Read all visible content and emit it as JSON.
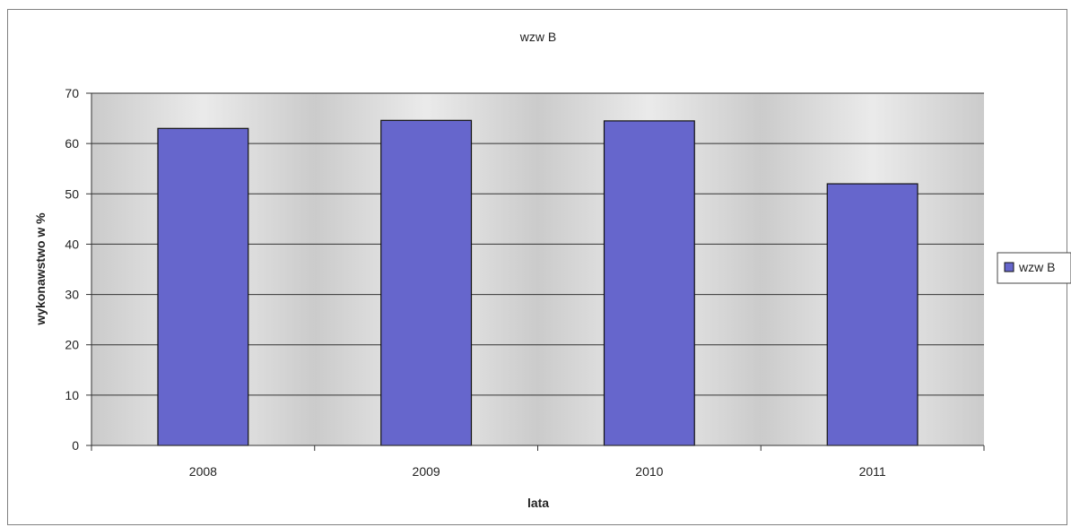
{
  "chart_data": {
    "type": "bar",
    "title": "wzw B",
    "xlabel": "lata",
    "ylabel": "wykonawstwo w %",
    "categories": [
      "2008",
      "2009",
      "2010",
      "2011"
    ],
    "series": [
      {
        "name": "wzw B",
        "values": [
          63,
          64.6,
          64.5,
          52
        ],
        "color": "#6666cc"
      }
    ],
    "ylim": [
      0,
      70
    ],
    "yticks": [
      "0",
      "10",
      "20",
      "30",
      "40",
      "50",
      "60",
      "70"
    ],
    "grid": true,
    "legend": "right",
    "plot_background": "#d6d6d6",
    "gridline_color": "#333333"
  }
}
